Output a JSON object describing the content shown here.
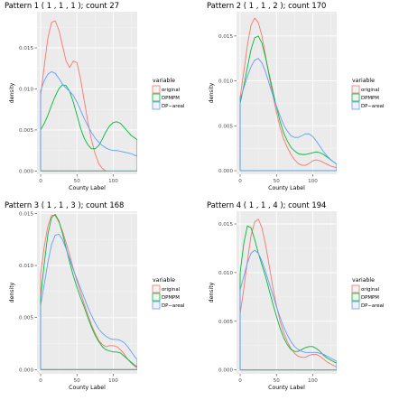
{
  "chart_data": [
    {
      "type": "line",
      "title": "Pattern 1 ( 1 ,  1 ,  1 ); count 27",
      "xlabel": "County Label",
      "ylabel": "density",
      "xlim": [
        -5,
        133
      ],
      "ylim": [
        -0.0004,
        0.0194
      ],
      "xticks": [
        0,
        50,
        100
      ],
      "yticks": [
        0.0,
        0.005,
        0.01,
        0.015
      ],
      "ytick_labels": [
        "0.000",
        "0.005",
        "0.010",
        "0.015"
      ],
      "grid": true,
      "legend_title": "variable",
      "legend_position": "right",
      "series": [
        {
          "name": "original",
          "color": "#F8766D",
          "x": [
            0,
            5,
            10,
            15,
            20,
            25,
            30,
            35,
            40,
            45,
            50,
            55,
            60,
            65,
            70,
            75,
            80,
            85,
            90
          ],
          "y": [
            0.0092,
            0.0128,
            0.0162,
            0.0181,
            0.0183,
            0.0172,
            0.0153,
            0.0134,
            0.0126,
            0.0134,
            0.0132,
            0.0112,
            0.0086,
            0.006,
            0.0038,
            0.0021,
            0.0009,
            0.0003,
            0.0
          ]
        },
        {
          "name": "DPMPM",
          "color": "#00BA38",
          "x": [
            0,
            5,
            10,
            15,
            20,
            25,
            30,
            35,
            40,
            45,
            50,
            55,
            60,
            65,
            70,
            75,
            80,
            85,
            90,
            95,
            100,
            105,
            110,
            115,
            120,
            125,
            130,
            133
          ],
          "y": [
            0.005,
            0.0058,
            0.0068,
            0.008,
            0.0091,
            0.01,
            0.0105,
            0.0104,
            0.0097,
            0.0084,
            0.0068,
            0.0052,
            0.004,
            0.0032,
            0.0027,
            0.0027,
            0.0031,
            0.0039,
            0.0048,
            0.0055,
            0.0059,
            0.006,
            0.0058,
            0.0053,
            0.0048,
            0.0043,
            0.004,
            0.0038
          ]
        },
        {
          "name": "DP−areal",
          "color": "#619CFF",
          "x": [
            0,
            5,
            10,
            15,
            20,
            25,
            30,
            35,
            40,
            45,
            50,
            55,
            60,
            65,
            70,
            75,
            80,
            85,
            90,
            95,
            100,
            105,
            110,
            115,
            120,
            125,
            130,
            133
          ],
          "y": [
            0.0098,
            0.011,
            0.0118,
            0.0121,
            0.0119,
            0.0113,
            0.0106,
            0.0101,
            0.0097,
            0.0092,
            0.0084,
            0.0074,
            0.0064,
            0.0055,
            0.0047,
            0.004,
            0.0035,
            0.0031,
            0.0028,
            0.0026,
            0.0025,
            0.0025,
            0.0024,
            0.0023,
            0.0022,
            0.0021,
            0.0019,
            0.0018
          ]
        }
      ]
    },
    {
      "type": "line",
      "title": "Pattern 2 ( 1 ,  1 ,  2 ); count 170",
      "xlabel": "County Label",
      "ylabel": "density",
      "xlim": [
        -5,
        133
      ],
      "ylim": [
        -0.0004,
        0.0177
      ],
      "xticks": [
        0,
        50,
        100
      ],
      "yticks": [
        0.0,
        0.005,
        0.01,
        0.015
      ],
      "ytick_labels": [
        "0.000",
        "0.005",
        "0.010",
        "0.015"
      ],
      "grid": true,
      "legend_title": "variable",
      "legend_position": "right",
      "series": [
        {
          "name": "original",
          "color": "#F8766D",
          "x": [
            0,
            5,
            10,
            15,
            20,
            25,
            30,
            35,
            40,
            45,
            50,
            55,
            60,
            65,
            70,
            75,
            80,
            85,
            90,
            95,
            100,
            105,
            110,
            115,
            120,
            125,
            130,
            133
          ],
          "y": [
            0.0082,
            0.011,
            0.014,
            0.0162,
            0.017,
            0.0165,
            0.015,
            0.0128,
            0.0105,
            0.0084,
            0.0065,
            0.0048,
            0.0035,
            0.0026,
            0.0018,
            0.0012,
            0.0008,
            0.0006,
            0.0006,
            0.0008,
            0.0011,
            0.0012,
            0.0011,
            0.0009,
            0.0007,
            0.0005,
            0.0004,
            0.0003
          ]
        },
        {
          "name": "DPMPM",
          "color": "#00BA38",
          "x": [
            0,
            5,
            10,
            15,
            20,
            25,
            30,
            35,
            40,
            45,
            50,
            55,
            60,
            65,
            70,
            75,
            80,
            85,
            90,
            95,
            100,
            105,
            110,
            115,
            120,
            125,
            130,
            133
          ],
          "y": [
            0.0075,
            0.0094,
            0.0115,
            0.0135,
            0.0148,
            0.015,
            0.0142,
            0.0126,
            0.0107,
            0.0089,
            0.0071,
            0.0055,
            0.0042,
            0.0033,
            0.0026,
            0.0022,
            0.0019,
            0.0018,
            0.0018,
            0.0019,
            0.002,
            0.0021,
            0.002,
            0.0018,
            0.0015,
            0.0012,
            0.0009,
            0.0007
          ]
        },
        {
          "name": "DP−areal",
          "color": "#619CFF",
          "x": [
            0,
            5,
            10,
            15,
            20,
            25,
            30,
            35,
            40,
            45,
            50,
            55,
            60,
            65,
            70,
            75,
            80,
            85,
            90,
            95,
            100,
            105,
            110,
            115,
            120,
            125,
            130,
            133
          ],
          "y": [
            0.008,
            0.0092,
            0.0105,
            0.0116,
            0.0123,
            0.0125,
            0.012,
            0.011,
            0.0097,
            0.0084,
            0.0072,
            0.0061,
            0.0051,
            0.0044,
            0.0039,
            0.0037,
            0.0037,
            0.0039,
            0.0041,
            0.0041,
            0.0038,
            0.0033,
            0.0027,
            0.0021,
            0.0016,
            0.0012,
            0.0009,
            0.0007
          ]
        }
      ]
    },
    {
      "type": "line",
      "title": "Pattern 3 ( 1 ,  1 ,  3 ); count 168",
      "xlabel": "County Label",
      "ylabel": "density",
      "xlim": [
        -5,
        133
      ],
      "ylim": [
        -0.0004,
        0.0152
      ],
      "xticks": [
        0,
        50,
        100
      ],
      "yticks": [
        0.0,
        0.005,
        0.01,
        0.015
      ],
      "ytick_labels": [
        "0.000",
        "0.005",
        "0.010",
        "0.015"
      ],
      "grid": true,
      "legend_title": "variable",
      "legend_position": "right",
      "series": [
        {
          "name": "original",
          "color": "#F8766D",
          "x": [
            0,
            5,
            10,
            15,
            20,
            25,
            30,
            35,
            40,
            45,
            50,
            55,
            60,
            65,
            70,
            75,
            80,
            85,
            90,
            95,
            100,
            105,
            110,
            115,
            120,
            125,
            130,
            133
          ],
          "y": [
            0.0092,
            0.0118,
            0.0138,
            0.0148,
            0.0148,
            0.0142,
            0.0133,
            0.0122,
            0.011,
            0.0097,
            0.0085,
            0.0074,
            0.0063,
            0.0053,
            0.0043,
            0.0035,
            0.0028,
            0.0024,
            0.0022,
            0.0023,
            0.0023,
            0.0022,
            0.0019,
            0.0015,
            0.001,
            0.0006,
            0.0003,
            0.0002
          ]
        },
        {
          "name": "DPMPM",
          "color": "#00BA38",
          "x": [
            0,
            5,
            10,
            15,
            20,
            25,
            30,
            35,
            40,
            45,
            50,
            55,
            60,
            65,
            70,
            75,
            80,
            85,
            90,
            95,
            100,
            105,
            110,
            115,
            120,
            125,
            130,
            133
          ],
          "y": [
            0.007,
            0.0102,
            0.013,
            0.0146,
            0.0149,
            0.0143,
            0.0131,
            0.0117,
            0.0103,
            0.009,
            0.0079,
            0.0069,
            0.006,
            0.005,
            0.0041,
            0.0033,
            0.0027,
            0.0022,
            0.0019,
            0.0018,
            0.0017,
            0.0017,
            0.0016,
            0.0013,
            0.001,
            0.0007,
            0.0004,
            0.0003
          ]
        },
        {
          "name": "DP−areal",
          "color": "#619CFF",
          "x": [
            0,
            5,
            10,
            15,
            20,
            25,
            30,
            35,
            40,
            45,
            50,
            55,
            60,
            65,
            70,
            75,
            80,
            85,
            90,
            95,
            100,
            105,
            110,
            115,
            120,
            125,
            130,
            133
          ],
          "y": [
            0.0062,
            0.0082,
            0.0103,
            0.012,
            0.0129,
            0.013,
            0.0125,
            0.0116,
            0.0106,
            0.0096,
            0.0087,
            0.0078,
            0.0069,
            0.006,
            0.0052,
            0.0045,
            0.0039,
            0.0035,
            0.0032,
            0.003,
            0.0029,
            0.0029,
            0.0028,
            0.0026,
            0.0022,
            0.0017,
            0.0012,
            0.001
          ]
        }
      ]
    },
    {
      "type": "line",
      "title": "Pattern 4 ( 1 ,  1 ,  4 ); count 194",
      "xlabel": "County Label",
      "ylabel": "density",
      "xlim": [
        -5,
        133
      ],
      "ylim": [
        -0.0004,
        0.0163
      ],
      "xticks": [
        0,
        50,
        100
      ],
      "yticks": [
        0.0,
        0.005,
        0.01,
        0.015
      ],
      "ytick_labels": [
        "0.000",
        "0.005",
        "0.010",
        "0.015"
      ],
      "grid": true,
      "legend_title": "variable",
      "legend_position": "right",
      "series": [
        {
          "name": "original",
          "color": "#F8766D",
          "x": [
            0,
            5,
            10,
            15,
            20,
            25,
            30,
            35,
            40,
            45,
            50,
            55,
            60,
            65,
            70,
            75,
            80,
            85,
            90,
            95,
            100,
            105,
            110,
            115,
            120,
            125,
            130,
            133
          ],
          "y": [
            0.0058,
            0.0083,
            0.0112,
            0.0138,
            0.0152,
            0.0155,
            0.0146,
            0.0129,
            0.0107,
            0.0085,
            0.0066,
            0.005,
            0.0038,
            0.0029,
            0.0022,
            0.0017,
            0.0014,
            0.0013,
            0.0013,
            0.0015,
            0.0016,
            0.0016,
            0.0014,
            0.0011,
            0.0008,
            0.0006,
            0.0004,
            0.0003
          ]
        },
        {
          "name": "DPMPM",
          "color": "#00BA38",
          "x": [
            0,
            5,
            10,
            15,
            20,
            25,
            30,
            35,
            40,
            45,
            50,
            55,
            60,
            65,
            70,
            75,
            80,
            85,
            90,
            95,
            100,
            105,
            110,
            115,
            120,
            125,
            130,
            133
          ],
          "y": [
            0.01,
            0.013,
            0.0148,
            0.0146,
            0.0134,
            0.012,
            0.0108,
            0.0096,
            0.0082,
            0.0068,
            0.0055,
            0.0043,
            0.0033,
            0.0026,
            0.0021,
            0.0019,
            0.0019,
            0.0021,
            0.0023,
            0.0024,
            0.0024,
            0.0022,
            0.0019,
            0.0015,
            0.0012,
            0.001,
            0.0008,
            0.0007
          ]
        },
        {
          "name": "DP−areal",
          "color": "#619CFF",
          "x": [
            0,
            5,
            10,
            15,
            20,
            25,
            30,
            35,
            40,
            45,
            50,
            55,
            60,
            65,
            70,
            75,
            80,
            85,
            90,
            95,
            100,
            105,
            110,
            115,
            120,
            125,
            130,
            133
          ],
          "y": [
            0.0082,
            0.0096,
            0.011,
            0.012,
            0.0123,
            0.012,
            0.0112,
            0.0101,
            0.0089,
            0.0077,
            0.0065,
            0.0054,
            0.0044,
            0.0036,
            0.0029,
            0.0024,
            0.0021,
            0.0019,
            0.0018,
            0.0018,
            0.0018,
            0.0018,
            0.0017,
            0.0016,
            0.0014,
            0.0012,
            0.001,
            0.0009
          ]
        }
      ]
    }
  ]
}
